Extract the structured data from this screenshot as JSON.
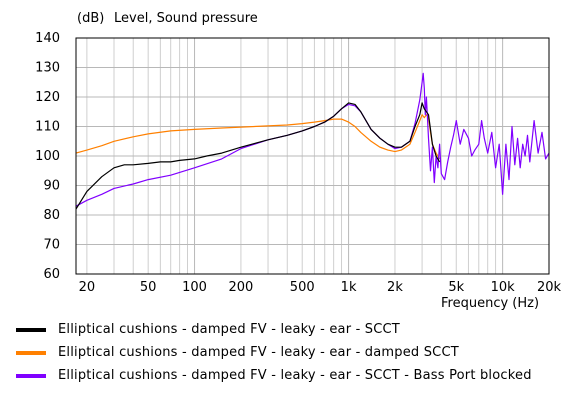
{
  "chart_data": {
    "type": "line",
    "title": "Level, Sound pressure",
    "ylabel": "(dB)",
    "xlabel": "Frequency  (Hz)",
    "xscale": "log",
    "xlim": [
      17,
      20000
    ],
    "ylim": [
      60,
      140
    ],
    "xticks": [
      {
        "v": 20,
        "label": "20"
      },
      {
        "v": 50,
        "label": "50"
      },
      {
        "v": 100,
        "label": "100"
      },
      {
        "v": 200,
        "label": "200"
      },
      {
        "v": 500,
        "label": "500"
      },
      {
        "v": 1000,
        "label": "1k"
      },
      {
        "v": 2000,
        "label": "2k"
      },
      {
        "v": 5000,
        "label": "5k"
      },
      {
        "v": 10000,
        "label": "10k"
      },
      {
        "v": 20000,
        "label": "20k"
      }
    ],
    "yticks": [
      60,
      70,
      80,
      90,
      100,
      110,
      120,
      130,
      140
    ],
    "grid": true,
    "legend_position": "bottom",
    "series": [
      {
        "name": "Elliptical cushions - damped FV - leaky - ear - SCCT",
        "color": "#000000",
        "x": [
          17,
          20,
          25,
          30,
          35,
          40,
          50,
          60,
          70,
          80,
          100,
          120,
          150,
          200,
          300,
          400,
          500,
          600,
          700,
          800,
          900,
          1000,
          1100,
          1200,
          1400,
          1600,
          1800,
          2000,
          2200,
          2500,
          2700,
          2900,
          3000,
          3100,
          3200,
          3300,
          3400,
          3500,
          3700,
          3900
        ],
        "y": [
          82,
          88,
          93,
          96,
          97,
          97,
          97.5,
          98,
          98,
          98.5,
          99,
          100,
          101,
          103,
          105.5,
          107,
          108.5,
          110,
          111.5,
          113.5,
          116,
          118,
          117.5,
          115,
          109,
          106,
          104,
          103,
          103,
          105,
          110,
          114,
          118,
          116,
          115,
          114,
          109,
          104,
          100,
          98
        ]
      },
      {
        "name": "Elliptical cushions - damped FV - leaky - ear - damped SCCT",
        "color": "#ff8000",
        "x": [
          17,
          20,
          25,
          30,
          40,
          50,
          70,
          100,
          150,
          200,
          300,
          400,
          500,
          600,
          700,
          800,
          900,
          1000,
          1100,
          1200,
          1400,
          1600,
          1800,
          2000,
          2200,
          2500,
          2700,
          2900,
          3000,
          3100,
          3200,
          3300,
          3400,
          3500,
          3700,
          3900
        ],
        "y": [
          101,
          102,
          103.5,
          105,
          106.5,
          107.5,
          108.5,
          109,
          109.5,
          109.8,
          110.2,
          110.5,
          111,
          111.5,
          112,
          112.5,
          112.5,
          111.5,
          110,
          108,
          105,
          103,
          102,
          101.5,
          102,
          104,
          108,
          112,
          114,
          113,
          114,
          113,
          108,
          104,
          101,
          99
        ]
      },
      {
        "name": "Elliptical cushions - damped FV - leaky - ear - SCCT - Bass Port blocked",
        "color": "#8000ff",
        "x": [
          17,
          20,
          25,
          30,
          40,
          50,
          70,
          100,
          150,
          200,
          300,
          400,
          500,
          600,
          700,
          800,
          900,
          1000,
          1100,
          1200,
          1400,
          1600,
          1800,
          2000,
          2200,
          2500,
          2700,
          2900,
          3000,
          3050,
          3100,
          3150,
          3200,
          3300,
          3400,
          3500,
          3600,
          3700,
          3800,
          3900,
          4000,
          4200,
          4400,
          4600,
          4800,
          5000,
          5300,
          5600,
          6000,
          6300,
          6600,
          7000,
          7300,
          7600,
          8000,
          8500,
          9000,
          9500,
          10000,
          10500,
          11000,
          11500,
          12000,
          12500,
          13000,
          13500,
          14000,
          14500,
          15000,
          16000,
          17000,
          18000,
          19000,
          20000
        ],
        "y": [
          83,
          85,
          87,
          89,
          90.5,
          92,
          93.5,
          96,
          99,
          102.5,
          105.5,
          107,
          108.5,
          110,
          111.5,
          113.5,
          116,
          117.5,
          117,
          115,
          109,
          106,
          104,
          102.5,
          103,
          105,
          111,
          119,
          125,
          128,
          123,
          114,
          120,
          106,
          95,
          103,
          91,
          100,
          96,
          104,
          94,
          92,
          98,
          103,
          107,
          112,
          104,
          109,
          106,
          100,
          102,
          104,
          112,
          106,
          101,
          108,
          96,
          104,
          87,
          104,
          92,
          110,
          97,
          106,
          96,
          104,
          100,
          107,
          98,
          112,
          101,
          108,
          99,
          101
        ]
      }
    ]
  }
}
